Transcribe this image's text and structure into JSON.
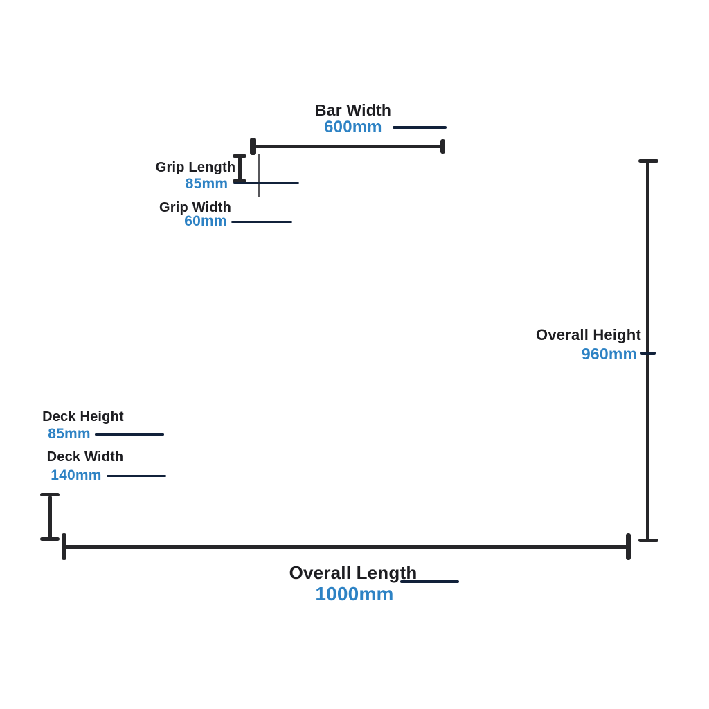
{
  "colors": {
    "accent_blue": "#2d82c4",
    "ink_black": "#1d1d21",
    "leader_navy": "#11213a",
    "line_dark": "#262629",
    "background": "#ffffff"
  },
  "diagram": {
    "type": "product-dimension-diagram",
    "unit": "mm",
    "dimensions": {
      "bar_width": {
        "label": "Bar Width",
        "value": "600mm"
      },
      "grip_length": {
        "label": "Grip Length",
        "value": "85mm"
      },
      "grip_width": {
        "label": "Grip Width",
        "value": "60mm"
      },
      "overall_height": {
        "label": "Overall Height",
        "value": "960mm"
      },
      "deck_height": {
        "label": "Deck Height",
        "value": "85mm"
      },
      "deck_width": {
        "label": "Deck Width",
        "value": "140mm"
      },
      "overall_length": {
        "label": "Overall Length",
        "value": "1000mm"
      }
    }
  }
}
